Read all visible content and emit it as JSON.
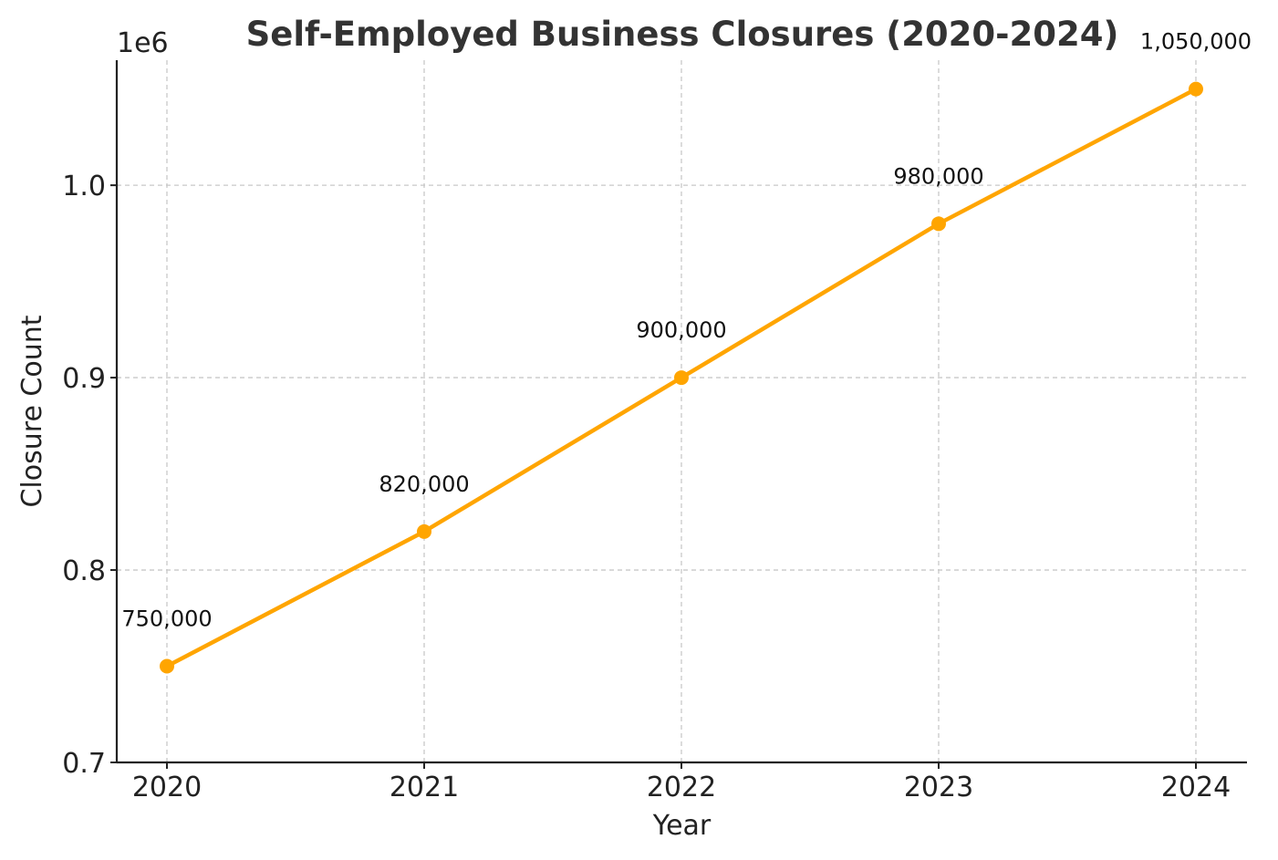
{
  "chart_data": {
    "type": "line",
    "title": "Self-Employed Business Closures (2020-2024)",
    "xlabel": "Year",
    "ylabel": "Closure Count",
    "y_offset_label": "1e6",
    "x": [
      "2020",
      "2021",
      "2022",
      "2023",
      "2024"
    ],
    "series": [
      {
        "values": [
          750000,
          820000,
          900000,
          980000,
          1050000
        ],
        "color": "#FFA500",
        "marker": "circle"
      }
    ],
    "data_labels": [
      "750,000",
      "820,000",
      "900,000",
      "980,000",
      "1,050,000"
    ],
    "ylim": [
      700000,
      1065000
    ],
    "yticks": [
      700000,
      800000,
      900000,
      1000000
    ],
    "ytick_labels": [
      "0.7",
      "0.8",
      "0.9",
      "1.0"
    ],
    "grid": true,
    "legend": "none"
  }
}
